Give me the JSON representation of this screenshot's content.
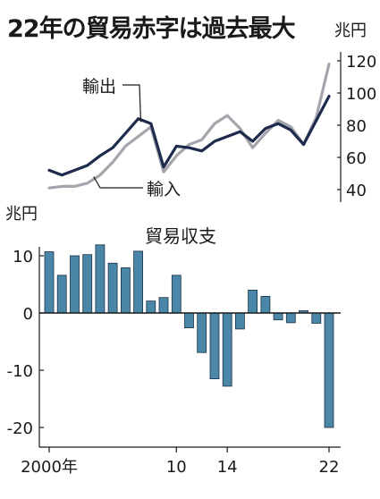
{
  "title": "22年の貿易赤字は過去最大",
  "colors": {
    "export": "#1f2b4d",
    "import": "#a5a5ad",
    "bar": "#4a86a8",
    "bar_stroke": "#1f3345",
    "axis": "#1a1a1a"
  },
  "chart_data": [
    {
      "type": "line",
      "unit": "兆円",
      "x": [
        2000,
        2001,
        2002,
        2003,
        2004,
        2005,
        2006,
        2007,
        2008,
        2009,
        2010,
        2011,
        2012,
        2013,
        2014,
        2015,
        2016,
        2017,
        2018,
        2019,
        2020,
        2021,
        2022
      ],
      "series": [
        {
          "name": "輸出",
          "color": "#1f2b4d",
          "values": [
            52,
            49,
            52,
            55,
            61,
            66,
            75,
            84,
            81,
            54,
            67,
            66,
            64,
            70,
            73,
            76,
            70,
            78,
            81,
            77,
            68,
            83,
            98
          ]
        },
        {
          "name": "輸入",
          "color": "#a5a5ad",
          "values": [
            41,
            42,
            42,
            44,
            49,
            57,
            67,
            73,
            79,
            51,
            61,
            68,
            71,
            81,
            86,
            78,
            66,
            75,
            83,
            79,
            68,
            85,
            118
          ]
        }
      ],
      "ylim": [
        36,
        124
      ],
      "yticks": [
        40,
        60,
        80,
        100,
        120
      ],
      "ytick_labels": [
        "40",
        "60",
        "80",
        "100",
        "120"
      ],
      "ylabel_position": "right"
    },
    {
      "type": "bar",
      "unit": "兆円",
      "title": "貿易収支",
      "x": [
        2000,
        2001,
        2002,
        2003,
        2004,
        2005,
        2006,
        2007,
        2008,
        2009,
        2010,
        2011,
        2012,
        2013,
        2014,
        2015,
        2016,
        2017,
        2018,
        2019,
        2020,
        2021,
        2022
      ],
      "values": [
        10.7,
        6.6,
        10.0,
        10.2,
        11.9,
        8.7,
        7.9,
        10.8,
        2.1,
        2.7,
        6.6,
        -2.6,
        -6.9,
        -11.5,
        -12.8,
        -2.8,
        4.0,
        2.9,
        -1.2,
        -1.7,
        0.4,
        -1.8,
        -20.0
      ],
      "ylim": [
        -23,
        16
      ],
      "yticks": [
        10,
        0,
        -10,
        -20
      ],
      "ytick_labels": [
        "10",
        "0",
        "-10",
        "-20"
      ],
      "xticks": [
        2000,
        2010,
        2014,
        2022
      ],
      "xtick_labels": [
        "2000年",
        "10",
        "14",
        "22"
      ]
    }
  ]
}
